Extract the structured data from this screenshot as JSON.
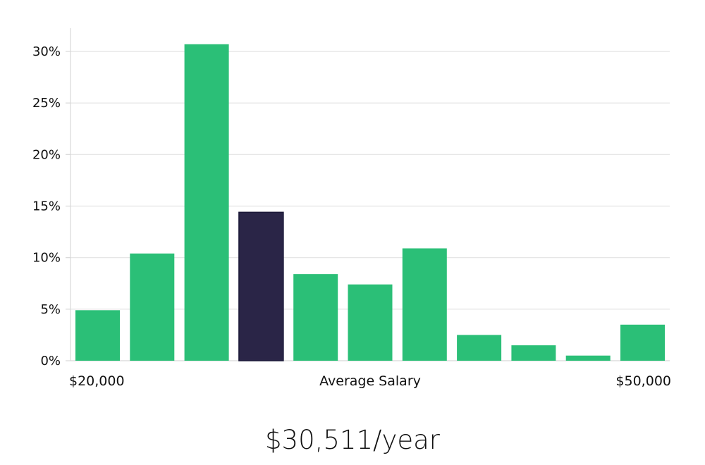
{
  "chart_data": {
    "type": "bar",
    "title": "",
    "xlabel": "Average Salary",
    "ylabel": "",
    "ylim": [
      0,
      0.32
    ],
    "y_ticks": [
      0,
      0.05,
      0.1,
      0.15,
      0.2,
      0.25,
      0.3
    ],
    "y_tick_labels": [
      "0%",
      "5%",
      "10%",
      "15%",
      "20%",
      "25%",
      "30%"
    ],
    "x_start_label": "$20,000",
    "x_end_label": "$50,000",
    "values": [
      0.049,
      0.104,
      0.307,
      0.144,
      0.084,
      0.074,
      0.109,
      0.025,
      0.015,
      0.005,
      0.035
    ],
    "highlight_index": 3,
    "grid": true
  },
  "colors": {
    "bar": "#2bbf77",
    "highlight": "#2a2547",
    "grid": "#e2e2e2",
    "axis": "#d8d8d8",
    "text": "#111111"
  },
  "summary": {
    "salary": "$30,511/year"
  }
}
